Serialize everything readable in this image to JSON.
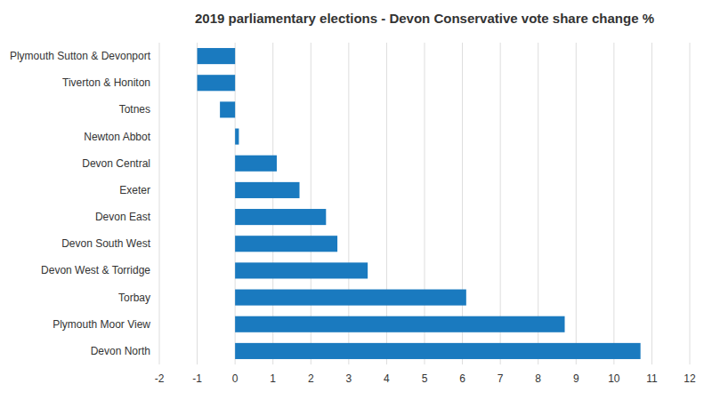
{
  "chart_data": {
    "type": "bar",
    "orientation": "horizontal",
    "title": "2019 parliamentary elections - Devon Conservative vote share change %",
    "categories": [
      "Plymouth Sutton & Devonport",
      "Tiverton & Honiton",
      "Totnes",
      "Newton Abbot",
      "Devon Central",
      "Exeter",
      "Devon East",
      "Devon South West",
      "Devon West & Torridge",
      "Torbay",
      "Plymouth Moor View",
      "Devon North"
    ],
    "values": [
      -1.0,
      -1.0,
      -0.4,
      0.1,
      1.1,
      1.7,
      2.4,
      2.7,
      3.5,
      6.1,
      8.7,
      10.7
    ],
    "color": "#1a7abf",
    "xlim": [
      -2,
      12
    ],
    "xticks": [
      -2,
      -1,
      0,
      1,
      2,
      3,
      4,
      5,
      6,
      7,
      8,
      9,
      10,
      11,
      12
    ],
    "grid": true
  }
}
